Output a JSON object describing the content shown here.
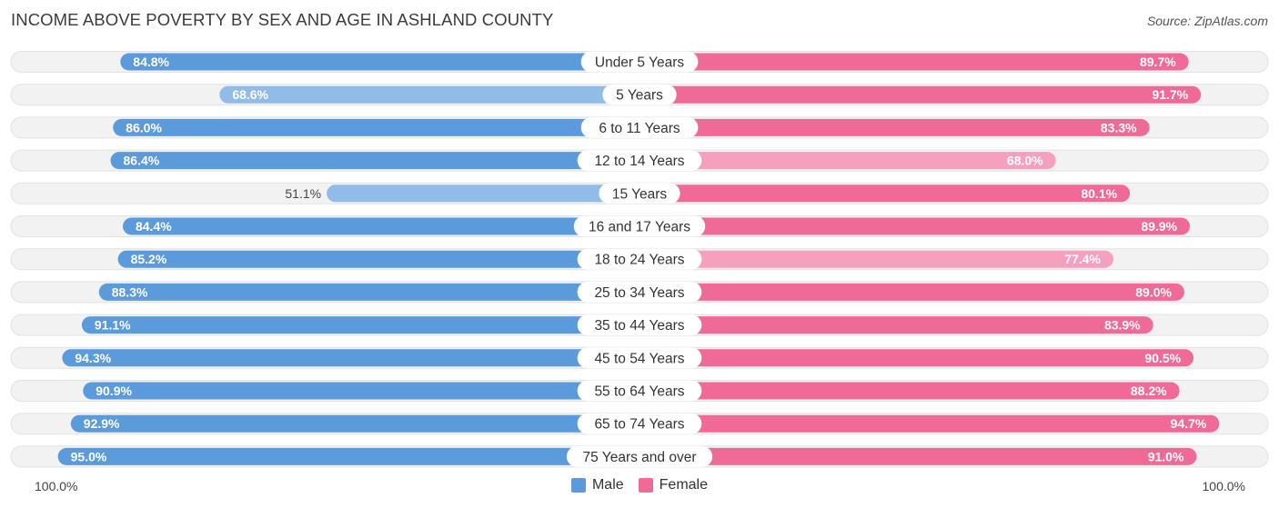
{
  "title": "INCOME ABOVE POVERTY BY SEX AND AGE IN ASHLAND COUNTY",
  "source": "Source: ZipAtlas.com",
  "colors": {
    "male_strong": "#5b9bdb",
    "male_light": "#92bce8",
    "female_strong": "#f06a98",
    "female_light": "#f6a0bf",
    "track": "#f1f1f1"
  },
  "legend": {
    "male_label": "Male",
    "female_label": "Female"
  },
  "axis": {
    "left_label": "100.0%",
    "right_label": "100.0%"
  },
  "chart_data": {
    "type": "bar",
    "orientation": "horizontal-diverging",
    "title": "INCOME ABOVE POVERTY BY SEX AND AGE IN ASHLAND COUNTY",
    "xlim": [
      0,
      100
    ],
    "categories": [
      "Under 5 Years",
      "5 Years",
      "6 to 11 Years",
      "12 to 14 Years",
      "15 Years",
      "16 and 17 Years",
      "18 to 24 Years",
      "25 to 34 Years",
      "35 to 44 Years",
      "45 to 54 Years",
      "55 to 64 Years",
      "65 to 74 Years",
      "75 Years and over"
    ],
    "series": [
      {
        "name": "Male",
        "values": [
          84.8,
          68.6,
          86.0,
          86.4,
          51.1,
          84.4,
          85.2,
          88.3,
          91.1,
          94.3,
          90.9,
          92.9,
          95.0
        ],
        "labels": [
          "84.8%",
          "68.6%",
          "86.0%",
          "86.4%",
          "51.1%",
          "84.4%",
          "85.2%",
          "88.3%",
          "91.1%",
          "94.3%",
          "90.9%",
          "92.9%",
          "95.0%"
        ]
      },
      {
        "name": "Female",
        "values": [
          89.7,
          91.7,
          83.3,
          68.0,
          80.1,
          89.9,
          77.4,
          89.0,
          83.9,
          90.5,
          88.2,
          94.7,
          91.0
        ],
        "labels": [
          "89.7%",
          "91.7%",
          "83.3%",
          "68.0%",
          "80.1%",
          "89.9%",
          "77.4%",
          "89.0%",
          "83.9%",
          "90.5%",
          "88.2%",
          "94.7%",
          "91.0%"
        ]
      }
    ]
  }
}
